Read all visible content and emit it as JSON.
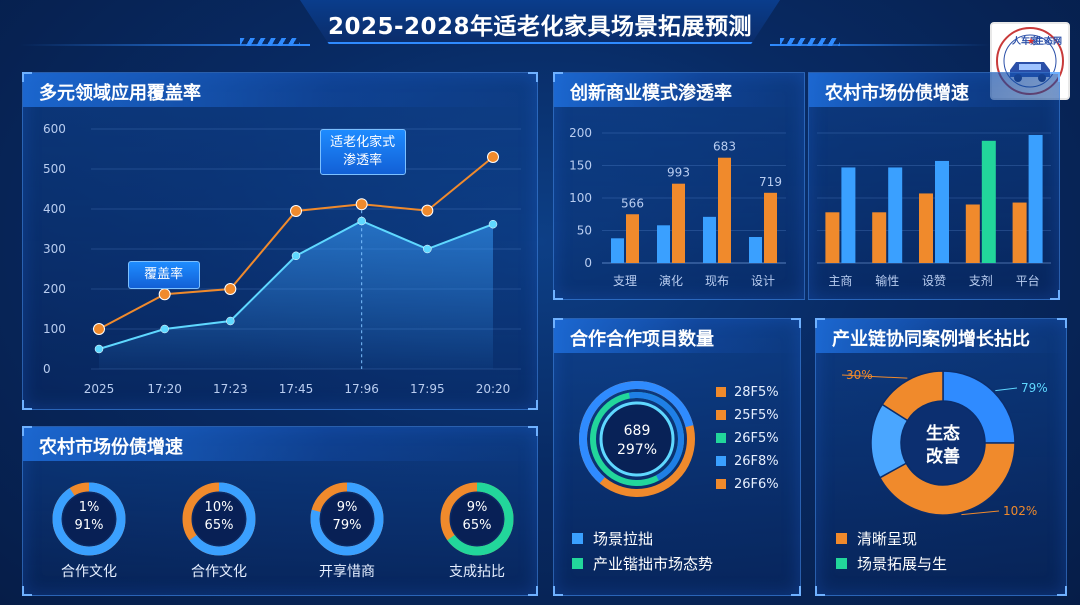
{
  "header": {
    "title": "2025-2028年适老化家具场景拓展预测"
  },
  "logo": {
    "text_top": "人车家",
    "text_star": "★",
    "text_right": "生态网"
  },
  "colors": {
    "orange": "#f08a2c",
    "blue": "#3aa0ff",
    "green": "#22d69b",
    "cyan": "#5fd8ff"
  },
  "panels": {
    "line": {
      "title": "多元领域应用覆盖率"
    },
    "bars1": {
      "title": "创新商业模式渗透率"
    },
    "bars2": {
      "title": "农村市场份债增速"
    },
    "rings": {
      "title": "农村市场份债增速"
    },
    "project": {
      "title": "合作合作项目数量"
    },
    "growth": {
      "title": "产业链协同案例增长拈比"
    }
  },
  "chart_data": [
    {
      "type": "line",
      "title": "多元领域应用覆盖率",
      "categories": [
        "2025",
        "17:20",
        "17:23",
        "17:45",
        "17:96",
        "17:95",
        "20:20"
      ],
      "series": [
        {
          "values": [
            100,
            187,
            200,
            395,
            412,
            396,
            530
          ]
        },
        {
          "values": [
            50,
            100,
            120,
            283,
            370,
            300,
            362
          ]
        }
      ],
      "ylim": [
        0,
        600
      ],
      "yticks": [
        0,
        100,
        200,
        300,
        400,
        500,
        600
      ],
      "annotations": [
        {
          "text": "覆盖率",
          "category": "17:20"
        },
        {
          "text": "适老化家式\n渗透率",
          "category": "17:96"
        }
      ]
    },
    {
      "type": "bar",
      "title": "创新商业模式渗透率",
      "categories": [
        "支理",
        "演化",
        "现布",
        "设计"
      ],
      "series": [
        {
          "values": [
            38,
            58,
            71,
            40
          ]
        },
        {
          "values": [
            75,
            122,
            162,
            108
          ]
        }
      ],
      "data_labels": [
        "566",
        "993",
        "683",
        "719"
      ],
      "ylim": [
        0,
        200
      ],
      "yticks": [
        0,
        50,
        100,
        150,
        200
      ]
    },
    {
      "type": "bar",
      "title": "农村市场份债增速",
      "categories": [
        "主商",
        "输性",
        "设赞",
        "支剂",
        "平台"
      ],
      "series": [
        {
          "values": [
            78,
            78,
            107,
            90,
            93
          ]
        },
        {
          "values": [
            147,
            147,
            157,
            188,
            197
          ]
        }
      ],
      "series_colors": [
        "#f08a2c",
        "#3aa0ff"
      ],
      "alt_colors": {
        "3": "#22d69b"
      },
      "ylim": [
        0,
        200
      ]
    },
    {
      "type": "pie",
      "title": "农村市场份债增速",
      "rings": [
        {
          "top": "1%",
          "bottom": "91%",
          "name": "合作文化",
          "value": 0.91,
          "color": "#3aa0ff"
        },
        {
          "top": "10%",
          "bottom": "65%",
          "name": "合作文化",
          "value": 0.65,
          "color": "#3aa0ff"
        },
        {
          "top": "9%",
          "bottom": "79%",
          "name": "开享惜商",
          "value": 0.79,
          "color": "#3aa0ff"
        },
        {
          "top": "9%",
          "bottom": "65%",
          "name": "支成拈比",
          "value": 0.65,
          "color": "#22d69b"
        }
      ]
    },
    {
      "type": "pie",
      "title": "合作合作项目数量",
      "center": [
        "689",
        "297%"
      ],
      "legend": [
        {
          "label": "28F5%",
          "color": "#f08a2c"
        },
        {
          "label": "25F5%",
          "color": "#f08a2c"
        },
        {
          "label": "26F5%",
          "color": "#22d69b"
        },
        {
          "label": "26F8%",
          "color": "#3aa0ff"
        },
        {
          "label": "26F6%",
          "color": "#f08a2c"
        }
      ],
      "bottom_legend": [
        {
          "label": "场景拉拙",
          "color": "#3aa0ff"
        },
        {
          "label": "产业锴拙市场态势",
          "color": "#22d69b"
        }
      ]
    },
    {
      "type": "pie",
      "title": "产业链协同案例增长拈比",
      "center": [
        "生态",
        "改善"
      ],
      "slices": [
        {
          "label": "79%",
          "value": 25,
          "color": "#2f8bff"
        },
        {
          "label": "102%",
          "value": 42,
          "color": "#f08a2c"
        },
        {
          "label": "",
          "value": 17,
          "color": "#4aa6ff"
        },
        {
          "label": "30%",
          "value": 16,
          "color": "#f08a2c"
        }
      ],
      "legend": [
        {
          "label": "清晰呈现",
          "color": "#f08a2c"
        },
        {
          "label": "场景拓展与生",
          "color": "#22d69b"
        }
      ]
    }
  ]
}
